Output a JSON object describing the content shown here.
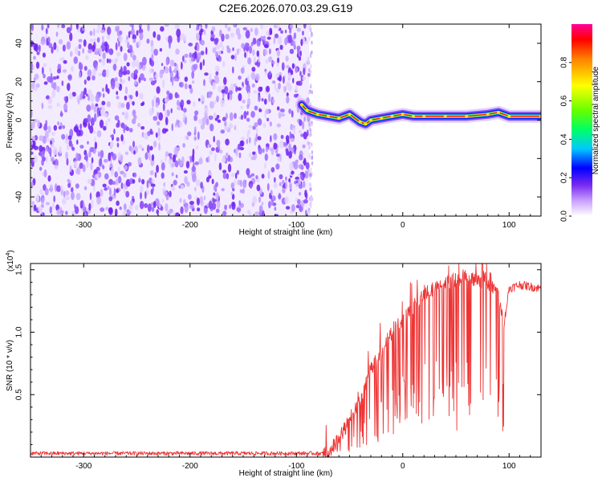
{
  "figure_title": "C2E6.2026.070.03.29.G19",
  "colors": {
    "snr_line": "#ee3333",
    "noise": "#7a2cf0",
    "background": "#ffffff"
  },
  "chart_data": [
    {
      "type": "heatmap",
      "xlabel": "Height of straight line (km)",
      "ylabel": "Frequency (Hz)",
      "xlim": [
        -350,
        130
      ],
      "ylim": [
        -50,
        50
      ],
      "xticks": [
        -300,
        -200,
        -100,
        0,
        100
      ],
      "yticks": [
        -40,
        -20,
        0,
        20,
        40
      ],
      "colorbar": {
        "label": "Normalized spectral amplitude",
        "range": [
          0,
          1
        ],
        "ticks": [
          "0.0",
          "0.2",
          "0.4",
          "0.6",
          "0.8"
        ],
        "colormap": "rainbow"
      },
      "description_values": {
        "noise_region_x": [
          -350,
          -88
        ],
        "signal_trace": {
          "x": [
            -95,
            -90,
            -80,
            -70,
            -60,
            -50,
            -40,
            -35,
            -30,
            -20,
            -10,
            0,
            10,
            20,
            40,
            60,
            80,
            90,
            100,
            130
          ],
          "y": [
            8,
            5,
            3,
            2,
            1,
            3,
            -1,
            -2,
            0,
            1,
            2,
            3,
            2,
            2,
            2,
            2,
            3,
            4,
            2,
            2
          ]
        }
      }
    },
    {
      "type": "line",
      "xlabel": "Height of straight line (km)",
      "ylabel": "SNR (10 * v/v)",
      "y_multiplier": "(x10",
      "y_multiplier_exp": "4",
      "y_multiplier_close": ")",
      "xlim": [
        -350,
        130
      ],
      "ylim": [
        0,
        1.55
      ],
      "xticks": [
        -300,
        -200,
        -100,
        0,
        100
      ],
      "yticks": [
        "0.5",
        "1.0",
        "1.5"
      ],
      "series": [
        {
          "x": [
            -350,
            -200,
            -100,
            -70,
            -60,
            -50,
            -40,
            -30,
            -20,
            -10,
            0,
            10,
            20,
            30,
            40,
            50,
            60,
            70,
            80,
            90,
            95,
            100,
            110,
            130
          ],
          "y": [
            0.03,
            0.03,
            0.03,
            0.03,
            0.15,
            0.3,
            0.45,
            0.7,
            0.85,
            1.0,
            1.1,
            1.2,
            1.3,
            1.35,
            1.4,
            1.42,
            1.45,
            1.42,
            1.4,
            1.3,
            1.05,
            1.35,
            1.38,
            1.35
          ]
        }
      ]
    }
  ],
  "axis_text": {
    "top_xlabel": "Height of straight line (km)",
    "top_ylabel": "Frequency (Hz)",
    "cbar_label": "Normalized spectral amplitude",
    "bot_xlabel": "Height of straight line (km)",
    "bot_ylabel": "SNR (10 * v/v)"
  }
}
